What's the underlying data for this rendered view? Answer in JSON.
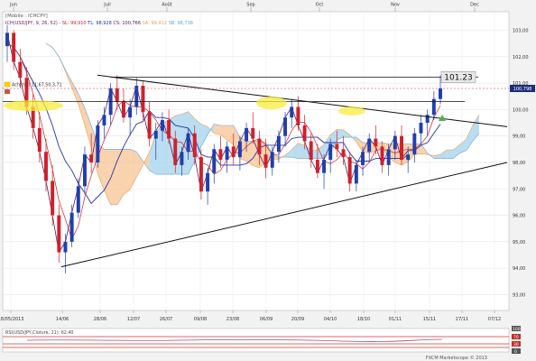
{
  "chart_data": {
    "type": "line",
    "title": "[Mobile : ICHCPY]",
    "indicator_line": "ICH(USD/JPY, 9, 26, 52) - SL: 99,910  TL: 98,928  CS: 100,766  SA: 99,412  SB: 98,738",
    "indicator_parts": [
      {
        "text": "ICH(USD/JPY, 9, 26, 52) - ",
        "color": "#6d1b5e"
      },
      {
        "text": "SL: 99,910",
        "color": "#d0202a"
      },
      {
        "text": "  TL: 98,928",
        "color": "#2233aa"
      },
      {
        "text": "  CS: 100,766",
        "color": "#4b1a55"
      },
      {
        "text": "  SA: 99,412",
        "color": "#e8a15a"
      },
      {
        "text": "  SB: 98,738",
        "color": "#5fa8d8"
      }
    ],
    "achat_label": "Achat(2) 11,67,50,3,71",
    "month_labels": [
      "Jun",
      "Juil",
      "Août",
      "Sep",
      "Oct",
      "Nov",
      "Dec"
    ],
    "x_tick_labels": [
      "18/05/2013",
      "14/06",
      "28/06",
      "12/07",
      "26/07",
      "09/08",
      "23/08",
      "06/09",
      "20/09",
      "04/10",
      "18/10",
      "01/11",
      "15/11",
      "27/11",
      "07/12"
    ],
    "y_tick_labels": [
      "103,00",
      "102,00",
      "101,00",
      "100,00",
      "99,00",
      "98,00",
      "97,00",
      "96,00",
      "95,00",
      "94,00",
      "93,00"
    ],
    "y_ticks": [
      103,
      102,
      101,
      100,
      99,
      98,
      97,
      96,
      95,
      94,
      93
    ],
    "ylim": [
      92.4,
      103.7
    ],
    "current_price_label": "100,798",
    "current_price": 100.798,
    "annotation": "101.23",
    "annotation_value": 101.23,
    "rsi_label": "RSI(USD/JPY,Cloture, 21): 62,40",
    "rsi_ticks": [
      "100",
      "70",
      "30",
      "0"
    ],
    "footer": "FXCM Marketscope © 2013",
    "candles": [
      [
        102.4,
        103.2,
        101.8,
        102.9
      ],
      [
        102.9,
        103.0,
        101.5,
        101.8
      ],
      [
        101.8,
        102.3,
        100.8,
        101.2
      ],
      [
        101.2,
        101.6,
        99.8,
        100.1
      ],
      [
        100.1,
        100.6,
        98.9,
        99.3
      ],
      [
        99.3,
        99.9,
        98.0,
        98.4
      ],
      [
        98.4,
        98.9,
        96.9,
        97.3
      ],
      [
        97.3,
        97.9,
        95.6,
        96.0
      ],
      [
        96.0,
        96.4,
        94.2,
        94.6
      ],
      [
        94.6,
        95.3,
        93.8,
        95.0
      ],
      [
        95.0,
        96.4,
        94.8,
        96.1
      ],
      [
        96.1,
        97.4,
        95.9,
        97.1
      ],
      [
        97.1,
        98.6,
        96.8,
        98.3
      ],
      [
        98.3,
        99.1,
        97.6,
        98.0
      ],
      [
        98.0,
        99.6,
        97.8,
        99.4
      ],
      [
        99.4,
        100.1,
        98.9,
        99.8
      ],
      [
        99.8,
        101.0,
        99.4,
        100.8
      ],
      [
        100.8,
        101.3,
        100.0,
        100.3
      ],
      [
        100.3,
        100.8,
        99.5,
        99.7
      ],
      [
        99.7,
        100.4,
        99.0,
        100.1
      ],
      [
        100.1,
        101.2,
        99.8,
        100.9
      ],
      [
        100.9,
        101.1,
        99.6,
        99.9
      ],
      [
        99.9,
        100.3,
        98.6,
        98.9
      ],
      [
        98.9,
        99.5,
        98.1,
        99.2
      ],
      [
        99.2,
        99.9,
        98.8,
        99.6
      ],
      [
        99.6,
        100.0,
        98.7,
        98.9
      ],
      [
        98.9,
        99.2,
        97.6,
        97.9
      ],
      [
        97.9,
        98.6,
        97.5,
        98.4
      ],
      [
        98.4,
        99.3,
        98.1,
        99.1
      ],
      [
        99.1,
        99.4,
        97.9,
        98.2
      ],
      [
        98.2,
        98.5,
        96.6,
        96.9
      ],
      [
        96.9,
        97.8,
        96.4,
        97.6
      ],
      [
        97.6,
        98.7,
        97.2,
        98.5
      ],
      [
        98.5,
        99.0,
        97.8,
        98.1
      ],
      [
        98.1,
        98.8,
        97.6,
        98.6
      ],
      [
        98.6,
        99.1,
        97.9,
        98.2
      ],
      [
        98.2,
        99.0,
        97.7,
        98.8
      ],
      [
        98.8,
        99.5,
        98.4,
        99.3
      ],
      [
        99.3,
        99.9,
        98.7,
        98.9
      ],
      [
        98.9,
        99.2,
        97.9,
        98.3
      ],
      [
        98.3,
        98.9,
        97.4,
        97.8
      ],
      [
        97.8,
        98.6,
        97.5,
        98.4
      ],
      [
        98.4,
        99.2,
        98.0,
        99.0
      ],
      [
        99.0,
        99.9,
        98.6,
        99.7
      ],
      [
        99.7,
        100.4,
        99.3,
        100.1
      ],
      [
        100.1,
        100.5,
        99.2,
        99.4
      ],
      [
        99.4,
        99.8,
        98.5,
        98.8
      ],
      [
        98.8,
        99.1,
        97.8,
        98.1
      ],
      [
        98.1,
        98.7,
        97.4,
        97.6
      ],
      [
        97.6,
        98.3,
        97.0,
        98.1
      ],
      [
        98.1,
        98.9,
        97.6,
        98.7
      ],
      [
        98.7,
        99.2,
        98.2,
        98.5
      ],
      [
        98.5,
        99.0,
        97.9,
        98.2
      ],
      [
        98.2,
        98.4,
        96.9,
        97.2
      ],
      [
        97.2,
        98.1,
        96.9,
        97.9
      ],
      [
        97.9,
        98.6,
        97.5,
        98.4
      ],
      [
        98.4,
        99.1,
        98.0,
        98.9
      ],
      [
        98.9,
        99.4,
        98.3,
        98.6
      ],
      [
        98.6,
        98.8,
        97.6,
        97.9
      ],
      [
        97.9,
        98.7,
        97.5,
        98.5
      ],
      [
        98.5,
        99.2,
        98.1,
        99.0
      ],
      [
        99.0,
        99.4,
        97.9,
        98.1
      ],
      [
        98.1,
        98.6,
        97.6,
        98.3
      ],
      [
        98.3,
        99.3,
        98.0,
        99.1
      ],
      [
        99.1,
        99.8,
        98.7,
        99.5
      ],
      [
        99.5,
        100.0,
        99.0,
        99.8
      ],
      [
        99.8,
        100.7,
        99.6,
        100.4
      ],
      [
        100.4,
        101.3,
        100.2,
        100.8
      ]
    ]
  }
}
